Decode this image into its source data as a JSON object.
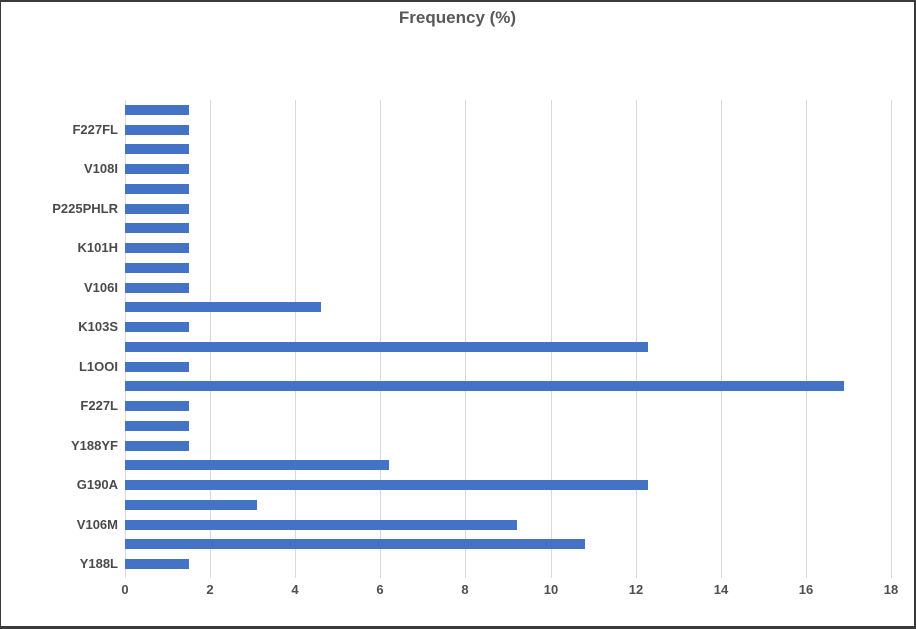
{
  "chart_data": {
    "type": "bar",
    "orientation": "horizontal",
    "title": "Frequency (%)",
    "xlabel": "",
    "ylabel": "",
    "xlim": [
      0,
      18
    ],
    "xticks": [
      0,
      2,
      4,
      6,
      8,
      10,
      12,
      14,
      16,
      18
    ],
    "grid": true,
    "legend": "none",
    "bar_color": "#4472C4",
    "gridline_color": "#D9D9D9",
    "note": "rows listed top-to-bottom; unlabeled rows show an empty axis label in the chart",
    "rows": [
      {
        "label": "",
        "value": 1.5
      },
      {
        "label": "F227FL",
        "value": 1.5
      },
      {
        "label": "",
        "value": 1.5
      },
      {
        "label": "V108I",
        "value": 1.5
      },
      {
        "label": "",
        "value": 1.5
      },
      {
        "label": "P225PHLR",
        "value": 1.5
      },
      {
        "label": "",
        "value": 1.5
      },
      {
        "label": "K101H",
        "value": 1.5
      },
      {
        "label": "",
        "value": 1.5
      },
      {
        "label": "V106I",
        "value": 1.5
      },
      {
        "label": "",
        "value": 4.6
      },
      {
        "label": "K103S",
        "value": 1.5
      },
      {
        "label": "",
        "value": 12.3
      },
      {
        "label": "L1OOI",
        "value": 1.5
      },
      {
        "label": "",
        "value": 16.9
      },
      {
        "label": "F227L",
        "value": 1.5
      },
      {
        "label": "",
        "value": 1.5
      },
      {
        "label": "Y188YF",
        "value": 1.5
      },
      {
        "label": "",
        "value": 6.2
      },
      {
        "label": "G190A",
        "value": 12.3
      },
      {
        "label": "",
        "value": 3.1
      },
      {
        "label": "V106M",
        "value": 9.2
      },
      {
        "label": "",
        "value": 10.8
      },
      {
        "label": "Y188L",
        "value": 1.5
      }
    ]
  }
}
